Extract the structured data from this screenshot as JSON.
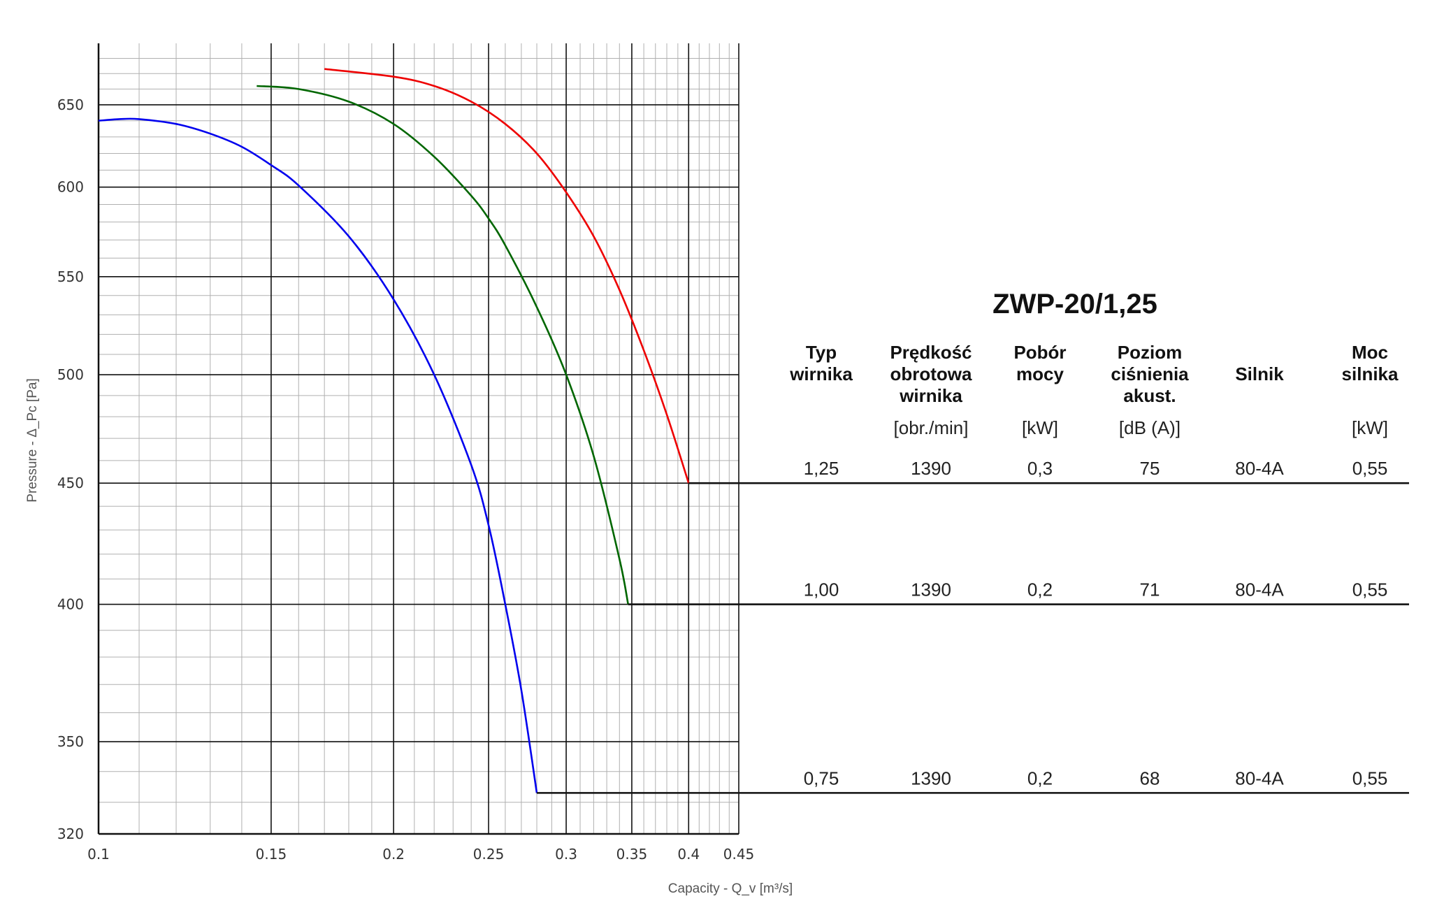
{
  "chart_data": {
    "type": "line",
    "title": "ZWP-20/1,25",
    "xlabel": "Capacity - Q_v [m³/s]",
    "ylabel": "Pressure - Δ_Pc [Pa]",
    "x_scale": "log",
    "y_scale": "log",
    "xlim": [
      0.1,
      0.45
    ],
    "ylim": [
      320,
      690
    ],
    "x_ticks": [
      0.1,
      0.15,
      0.2,
      0.25,
      0.3,
      0.35,
      0.4,
      0.45
    ],
    "x_tick_labels": [
      "0.1",
      "0.15",
      "0.2",
      "0.25",
      "0.3",
      "0.35",
      "0.4",
      "0.45"
    ],
    "y_ticks": [
      320,
      350,
      400,
      450,
      500,
      550,
      600,
      650
    ],
    "y_tick_labels": [
      "320",
      "350",
      "400",
      "450",
      "500",
      "550",
      "600",
      "650"
    ],
    "grid": true,
    "series": [
      {
        "color": "#0000ee",
        "x": [
          0.1,
          0.105,
          0.11,
          0.12,
          0.13,
          0.14,
          0.15,
          0.16,
          0.18,
          0.2,
          0.22,
          0.24,
          0.25,
          0.26,
          0.27,
          0.28
        ],
        "y": [
          640,
          641,
          641,
          638,
          632,
          624,
          613,
          601,
          572,
          538,
          500,
          458,
          432,
          400,
          368,
          333
        ]
      },
      {
        "color": "#006600",
        "x": [
          0.145,
          0.16,
          0.18,
          0.2,
          0.22,
          0.24,
          0.25,
          0.26,
          0.28,
          0.3,
          0.32,
          0.34,
          0.347
        ],
        "y": [
          662,
          660,
          652,
          638,
          618,
          595,
          582,
          567,
          534,
          500,
          462,
          418,
          400
        ]
      },
      {
        "color": "#ee0000",
        "x": [
          0.17,
          0.2,
          0.22,
          0.24,
          0.26,
          0.28,
          0.3,
          0.32,
          0.34,
          0.36,
          0.38,
          0.4
        ],
        "y": [
          673,
          668,
          662,
          652,
          638,
          620,
          597,
          572,
          543,
          512,
          481,
          450
        ]
      }
    ]
  },
  "table": {
    "headers": [
      {
        "lines": [
          "Typ",
          "wirnika"
        ],
        "unit": ""
      },
      {
        "lines": [
          "Prędkość",
          "obrotowa",
          "wirnika"
        ],
        "unit": "[obr./min]"
      },
      {
        "lines": [
          "Pobór",
          "mocy"
        ],
        "unit": "[kW]"
      },
      {
        "lines": [
          "Poziom",
          "ciśnienia",
          "akust."
        ],
        "unit": "[dB (A)]"
      },
      {
        "lines": [
          "Silnik"
        ],
        "unit": ""
      },
      {
        "lines": [
          "Moc",
          "silnika"
        ],
        "unit": "[kW]"
      }
    ],
    "rows": [
      {
        "pressure": 450,
        "cells": [
          "1,25",
          "1390",
          "0,3",
          "75",
          "80-4A",
          "0,55"
        ]
      },
      {
        "pressure": 400,
        "cells": [
          "1,00",
          "1390",
          "0,2",
          "71",
          "80-4A",
          "0,55"
        ]
      },
      {
        "pressure": 333,
        "cells": [
          "0,75",
          "1390",
          "0,2",
          "68",
          "80-4A",
          "0,55"
        ]
      }
    ]
  }
}
